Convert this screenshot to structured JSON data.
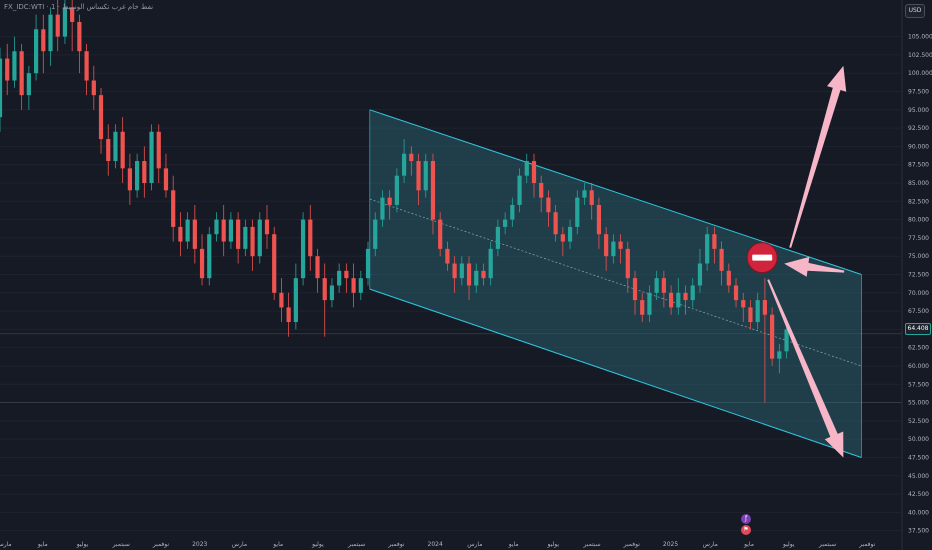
{
  "header": {
    "symbol_title": "FX_IDC:WTI · 1 · نفط خام غرب تكساس الوسيط",
    "currency": "USD",
    "price_tag": "64.408"
  },
  "colors": {
    "background": "#161a25",
    "up": "#26a69a",
    "down": "#ef5350",
    "channel_line": "#2ec8e0",
    "channel_fill": "#2a6a78",
    "arrow": "#f7b6c8",
    "stop_sign": "#d0243c"
  },
  "chart_data": {
    "type": "candlestick",
    "y_axis": {
      "range": [
        36.5,
        110
      ],
      "ticks": [
        "105.000",
        "102.500",
        "100.000",
        "97.500",
        "95.000",
        "92.500",
        "90.000",
        "87.500",
        "85.000",
        "82.500",
        "80.000",
        "77.500",
        "75.000",
        "72.500",
        "70.000",
        "67.500",
        "65.000",
        "62.500",
        "60.000",
        "57.500",
        "55.000",
        "52.500",
        "50.000",
        "47.500",
        "45.000",
        "42.500",
        "40.000",
        "37.500"
      ],
      "tick_values": [
        105,
        102.5,
        100,
        97.5,
        95,
        92.5,
        90,
        87.5,
        85,
        82.5,
        80,
        77.5,
        75,
        72.5,
        70,
        67.5,
        65,
        62.5,
        60,
        57.5,
        55,
        52.5,
        50,
        47.5,
        45,
        42.5,
        40,
        37.5
      ]
    },
    "x_axis": {
      "labels": [
        "مارس",
        "مايو",
        "يوليو",
        "سبتمبر",
        "نوفمبر",
        "2023",
        "مارس",
        "مايو",
        "يوليو",
        "سبتمبر",
        "نوفمبر",
        "2024",
        "مارس",
        "مايو",
        "يوليو",
        "سبتمبر",
        "نوفمبر",
        "2025",
        "مارس",
        "مايو",
        "يوليو",
        "سبتمبر",
        "نوفمبر"
      ],
      "positions": [
        0.0,
        0.043,
        0.087,
        0.13,
        0.174,
        0.217,
        0.261,
        0.304,
        0.348,
        0.391,
        0.435,
        0.478,
        0.522,
        0.565,
        0.609,
        0.652,
        0.696,
        0.739,
        0.783,
        0.826,
        0.87,
        0.913,
        0.957
      ]
    },
    "current_price": 64.408,
    "horizontal_level": 55.0,
    "channel": {
      "upper": [
        [
          0.41,
          95.0
        ],
        [
          0.955,
          72.5
        ]
      ],
      "lower": [
        [
          0.41,
          70.5
        ],
        [
          0.955,
          47.5
        ]
      ],
      "midline": [
        [
          0.41,
          82.8
        ],
        [
          0.955,
          60.0
        ]
      ]
    },
    "annotations": {
      "arrow_up_target": [
        0.935,
        101
      ],
      "arrow_left_target": [
        0.87,
        73.5
      ],
      "arrow_down_target": [
        0.935,
        47.5
      ],
      "stop_sign_at": [
        0.845,
        74.8
      ]
    },
    "candles": [
      [
        0.0,
        94,
        102,
        92,
        103.5
      ],
      [
        0.008,
        102,
        99,
        97,
        104
      ],
      [
        0.016,
        99,
        103,
        98,
        105
      ],
      [
        0.024,
        103,
        97,
        95,
        104
      ],
      [
        0.032,
        97,
        100,
        95,
        101
      ],
      [
        0.04,
        100,
        106,
        99,
        108
      ],
      [
        0.048,
        106,
        103,
        100,
        108
      ],
      [
        0.056,
        103,
        108,
        101,
        109
      ],
      [
        0.064,
        108,
        105,
        103,
        110
      ],
      [
        0.072,
        105,
        109,
        104,
        110
      ],
      [
        0.08,
        109,
        107,
        103,
        110
      ],
      [
        0.088,
        107,
        103,
        100,
        108
      ],
      [
        0.096,
        103,
        99,
        97,
        104
      ],
      [
        0.104,
        99,
        97,
        95,
        101
      ],
      [
        0.112,
        97,
        91,
        89,
        98
      ],
      [
        0.12,
        91,
        88,
        86,
        93
      ],
      [
        0.128,
        88,
        92,
        87,
        93
      ],
      [
        0.136,
        92,
        87,
        85,
        94
      ],
      [
        0.144,
        87,
        84,
        82,
        89
      ],
      [
        0.152,
        84,
        88,
        83,
        89
      ],
      [
        0.16,
        88,
        85,
        83,
        90
      ],
      [
        0.168,
        85,
        92,
        84,
        93
      ],
      [
        0.176,
        92,
        87,
        85,
        93
      ],
      [
        0.184,
        87,
        84,
        83,
        89
      ],
      [
        0.192,
        84,
        79,
        77,
        86
      ],
      [
        0.2,
        79,
        77,
        75,
        81
      ],
      [
        0.208,
        77,
        80,
        76,
        81
      ],
      [
        0.216,
        80,
        76,
        74,
        82
      ],
      [
        0.224,
        76,
        72,
        71,
        78
      ],
      [
        0.232,
        72,
        78,
        71,
        79
      ],
      [
        0.24,
        78,
        80,
        77,
        81
      ],
      [
        0.248,
        80,
        77,
        75,
        82
      ],
      [
        0.256,
        77,
        80,
        76,
        81
      ],
      [
        0.264,
        80,
        76,
        74,
        81
      ],
      [
        0.272,
        76,
        79,
        75,
        80
      ],
      [
        0.28,
        79,
        75,
        73,
        80
      ],
      [
        0.288,
        75,
        80,
        74,
        81
      ],
      [
        0.296,
        80,
        78,
        76,
        82
      ],
      [
        0.304,
        78,
        70,
        69,
        79
      ],
      [
        0.312,
        70,
        68,
        66,
        72
      ],
      [
        0.32,
        68,
        66,
        64,
        70
      ],
      [
        0.328,
        66,
        72,
        65,
        74
      ],
      [
        0.336,
        72,
        80,
        71,
        81
      ],
      [
        0.344,
        80,
        75,
        73,
        82
      ],
      [
        0.352,
        75,
        72,
        70,
        76
      ],
      [
        0.36,
        72,
        69,
        64,
        74
      ],
      [
        0.368,
        69,
        71,
        68,
        72
      ],
      [
        0.376,
        71,
        73,
        70,
        74
      ],
      [
        0.384,
        73,
        72,
        70,
        74
      ],
      [
        0.392,
        72,
        70,
        68,
        74
      ],
      [
        0.4,
        70,
        72,
        69,
        73
      ],
      [
        0.408,
        72,
        76,
        71,
        77
      ],
      [
        0.416,
        76,
        80,
        75,
        81
      ],
      [
        0.424,
        80,
        83,
        79,
        84
      ],
      [
        0.432,
        83,
        82,
        80,
        84
      ],
      [
        0.44,
        82,
        86,
        81,
        87
      ],
      [
        0.448,
        86,
        89,
        85,
        91
      ],
      [
        0.456,
        89,
        88,
        86,
        90
      ],
      [
        0.464,
        88,
        84,
        82,
        89
      ],
      [
        0.472,
        84,
        88,
        83,
        89
      ],
      [
        0.48,
        88,
        80,
        78,
        89
      ],
      [
        0.488,
        80,
        76,
        75,
        81
      ],
      [
        0.496,
        76,
        74,
        73,
        77
      ],
      [
        0.504,
        74,
        72,
        70,
        75
      ],
      [
        0.512,
        72,
        74,
        71,
        75
      ],
      [
        0.52,
        74,
        71,
        69,
        75
      ],
      [
        0.528,
        71,
        73,
        70,
        74
      ],
      [
        0.536,
        73,
        72,
        71,
        74
      ],
      [
        0.544,
        72,
        76,
        71,
        77
      ],
      [
        0.552,
        76,
        79,
        75,
        80
      ],
      [
        0.56,
        79,
        80,
        78,
        81
      ],
      [
        0.568,
        80,
        82,
        79,
        83
      ],
      [
        0.576,
        82,
        86,
        81,
        87
      ],
      [
        0.584,
        86,
        88,
        85,
        89
      ],
      [
        0.592,
        88,
        85,
        83,
        89
      ],
      [
        0.6,
        85,
        83,
        81,
        86
      ],
      [
        0.608,
        83,
        81,
        79,
        84
      ],
      [
        0.616,
        81,
        78,
        77,
        82
      ],
      [
        0.624,
        78,
        77,
        75,
        79
      ],
      [
        0.632,
        77,
        79,
        76,
        80
      ],
      [
        0.64,
        79,
        83,
        78,
        84
      ],
      [
        0.648,
        83,
        84,
        82,
        85
      ],
      [
        0.656,
        84,
        82,
        80,
        85
      ],
      [
        0.664,
        82,
        78,
        76,
        83
      ],
      [
        0.672,
        78,
        75,
        73,
        79
      ],
      [
        0.68,
        75,
        77,
        74,
        78
      ],
      [
        0.688,
        77,
        76,
        74,
        78
      ],
      [
        0.696,
        76,
        72,
        70,
        77
      ],
      [
        0.704,
        72,
        69,
        67,
        73
      ],
      [
        0.712,
        69,
        67,
        66,
        70
      ],
      [
        0.72,
        67,
        70,
        66,
        71
      ],
      [
        0.728,
        70,
        72,
        69,
        73
      ],
      [
        0.736,
        72,
        70,
        68,
        73
      ],
      [
        0.744,
        70,
        68,
        67,
        71
      ],
      [
        0.752,
        68,
        70,
        67,
        72
      ],
      [
        0.76,
        70,
        69,
        67,
        71
      ],
      [
        0.768,
        69,
        71,
        68,
        72
      ],
      [
        0.776,
        71,
        74,
        70,
        76
      ],
      [
        0.784,
        74,
        78,
        73,
        79
      ],
      [
        0.792,
        78,
        76,
        74,
        79
      ],
      [
        0.8,
        76,
        73,
        71,
        77
      ],
      [
        0.808,
        73,
        71,
        70,
        74
      ],
      [
        0.816,
        71,
        69,
        68,
        72
      ],
      [
        0.824,
        69,
        68,
        66,
        70
      ],
      [
        0.832,
        68,
        66,
        65,
        69
      ],
      [
        0.84,
        66,
        69,
        65,
        70
      ],
      [
        0.848,
        69,
        67,
        55,
        72
      ],
      [
        0.856,
        67,
        61,
        60,
        68
      ],
      [
        0.864,
        61,
        62,
        59,
        63
      ],
      [
        0.872,
        62,
        65,
        61,
        66
      ]
    ]
  }
}
